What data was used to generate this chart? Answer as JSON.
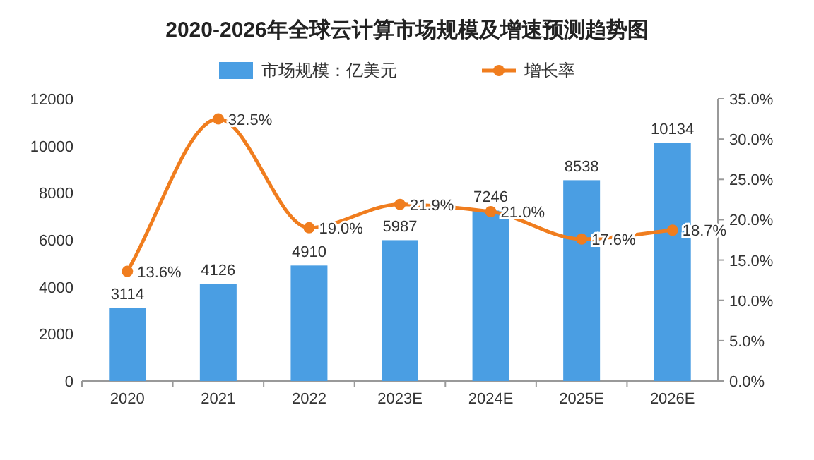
{
  "chart_data": {
    "type": "bar",
    "title": "2020-2026年全球云计算市场规模及增速预测趋势图",
    "categories": [
      "2020",
      "2021",
      "2022",
      "2023E",
      "2024E",
      "2025E",
      "2026E"
    ],
    "series": [
      {
        "name": "市场规模：亿美元",
        "color": "#4a9ee3",
        "values": [
          3114,
          4126,
          4910,
          5987,
          7246,
          8538,
          10134
        ],
        "value_labels": [
          "3114",
          "4126",
          "4910",
          "5987",
          "7246",
          "8538",
          "10134"
        ]
      },
      {
        "name": "增长率",
        "type": "line",
        "axis": "y2",
        "color": "#f07d1e",
        "marker": "circle",
        "values": [
          13.6,
          32.5,
          19.0,
          21.9,
          21.0,
          17.6,
          18.7
        ],
        "value_labels": [
          "13.6%",
          "32.5%",
          "19.0%",
          "21.9%",
          "21.0%",
          "17.6%",
          "18.7%"
        ]
      }
    ],
    "ylim": [
      0,
      12000
    ],
    "yticks": [
      0,
      2000,
      4000,
      6000,
      8000,
      10000,
      12000
    ],
    "y2lim": [
      0,
      35
    ],
    "y2ticks": [
      {
        "value": 0,
        "label": "0.0%"
      },
      {
        "value": 5,
        "label": "5.0%"
      },
      {
        "value": 10,
        "label": "10.0%"
      },
      {
        "value": 15,
        "label": "15.0%"
      },
      {
        "value": 20,
        "label": "20.0%"
      },
      {
        "value": 25,
        "label": "25.0%"
      },
      {
        "value": 30,
        "label": "30.0%"
      },
      {
        "value": 35,
        "label": "35.0%"
      }
    ],
    "legend": "top"
  }
}
